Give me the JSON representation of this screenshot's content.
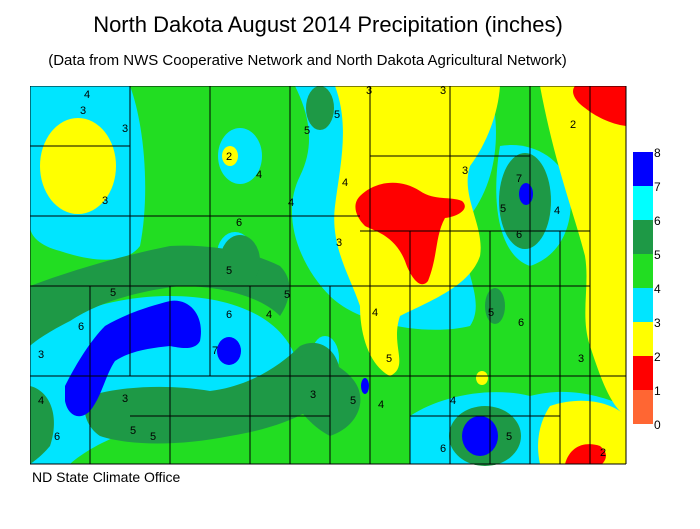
{
  "title": "North Dakota August 2014 Precipitation (inches)",
  "subtitle": "(Data from NWS Cooperative Network and North Dakota Agricultural Network)",
  "credit": "ND State Climate Office",
  "legend": {
    "labels": [
      "8",
      "7",
      "6",
      "5",
      "4",
      "3",
      "2",
      "1",
      "0"
    ],
    "bins": [
      {
        "range": "7-8",
        "color": "#0000ff"
      },
      {
        "range": "6-7",
        "color": "#00ffff"
      },
      {
        "range": "5-6",
        "color": "#1e9946"
      },
      {
        "range": "4-5",
        "color": "#22dd22"
      },
      {
        "range": "3-4",
        "color": "#00e5ff"
      },
      {
        "range": "2-3",
        "color": "#ffff00"
      },
      {
        "range": "1-2",
        "color": "#ff0000"
      },
      {
        "range": "0-1",
        "color": "#ff6633"
      }
    ]
  },
  "contour_labels": [
    "4",
    "3",
    "3",
    "3",
    "5",
    "2",
    "4",
    "5",
    "3",
    "3",
    "6",
    "5",
    "5",
    "4",
    "4",
    "3",
    "4",
    "5",
    "5",
    "6",
    "3",
    "7",
    "6",
    "5",
    "5",
    "6",
    "6",
    "4",
    "3",
    "4",
    "3",
    "5",
    "5",
    "6",
    "7",
    "3",
    "5",
    "4",
    "4",
    "6",
    "5",
    "4",
    "2",
    "3",
    "2"
  ]
}
